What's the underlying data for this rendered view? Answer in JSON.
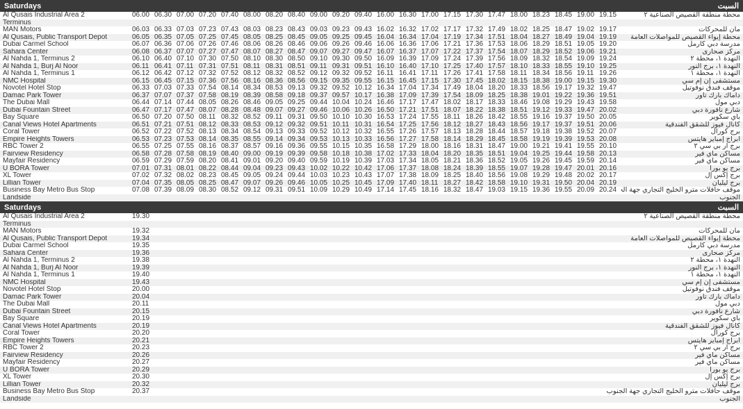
{
  "headers": {
    "saturday_en": "Saturdays",
    "saturday_ar": "السبت"
  },
  "trip_headers": [
    "06.00",
    "06.30",
    "07.00",
    "07.20",
    "07.40",
    "08.00",
    "08.20",
    "08.40",
    "09.00",
    "09.20",
    "09.40",
    "16.00",
    "16.30",
    "17.00",
    "17.15",
    "17.30",
    "17.47",
    "18.00",
    "18.23",
    "18.45",
    "19.00",
    "19.15"
  ],
  "stops": [
    {
      "en": "Al Qusais Industrial Area 2 Terminus",
      "ar": "محطة منطقة القصيص الصناعية ٢",
      "times": [
        "06.00",
        "06.30",
        "07.00",
        "07.20",
        "07.40",
        "08.00",
        "08.20",
        "08.40",
        "09.00",
        "09.20",
        "09.40",
        "16.00",
        "16.30",
        "17.00",
        "17.15",
        "17.30",
        "17.47",
        "18.00",
        "18.23",
        "18.45",
        "19.00",
        "19.15"
      ]
    },
    {
      "en": "MAN Motors",
      "ar": "مان للمحركات",
      "times": [
        "06.03",
        "06.33",
        "07.03",
        "07.23",
        "07.43",
        "08.03",
        "08.23",
        "08.43",
        "09.03",
        "09.23",
        "09.43",
        "16.02",
        "16.32",
        "17.02",
        "17.17",
        "17.32",
        "17.49",
        "18.02",
        "18.25",
        "18.47",
        "19.02",
        "19.17"
      ]
    },
    {
      "en": "Al Qusais, Public Transport Depot",
      "ar": "محطة إيواء القصيص للمواصلات العامة",
      "times": [
        "06.05",
        "06.35",
        "07.05",
        "07.25",
        "07.45",
        "08.05",
        "08.25",
        "08.45",
        "09.05",
        "09.25",
        "09.45",
        "16.04",
        "16.34",
        "17.04",
        "17.19",
        "17.34",
        "17.51",
        "18.04",
        "18.27",
        "18.49",
        "19.04",
        "19.19"
      ]
    },
    {
      "en": "Dubai Carmel School",
      "ar": "مدرسة دبي كارمل",
      "times": [
        "06.07",
        "06.36",
        "07.06",
        "07.26",
        "07.46",
        "08.06",
        "08.26",
        "08.46",
        "09.06",
        "09.26",
        "09.46",
        "16.06",
        "16.36",
        "17.06",
        "17.21",
        "17.36",
        "17.53",
        "18.06",
        "18.29",
        "18.51",
        "19.05",
        "19.20"
      ]
    },
    {
      "en": "Sahara Center",
      "ar": "مركز صحارى",
      "times": [
        "06.08",
        "06.37",
        "07.07",
        "07.27",
        "07.47",
        "08.07",
        "08.27",
        "08.47",
        "09.07",
        "09.27",
        "09.47",
        "16.07",
        "16.37",
        "17.07",
        "17.22",
        "17.37",
        "17.54",
        "18.07",
        "18.29",
        "18.52",
        "19.06",
        "19.21"
      ]
    },
    {
      "en": "Al Nahda 1, Terminus 2",
      "ar": "النهدة ١، محطة ٢",
      "times": [
        "06.10",
        "06.40",
        "07.10",
        "07.30",
        "07.50",
        "08.10",
        "08.30",
        "08.50",
        "09.10",
        "09.30",
        "09.50",
        "16.09",
        "16.39",
        "17.09",
        "17.24",
        "17.39",
        "17.56",
        "18.09",
        "18.32",
        "18.54",
        "19.09",
        "19.24"
      ]
    },
    {
      "en": "Al Nahda 1, Burj Al Noor",
      "ar": "النهدة ١، برج النور",
      "times": [
        "06.11",
        "06.41",
        "07.11",
        "07.31",
        "07.51",
        "08.11",
        "08.31",
        "08.51",
        "09.11",
        "09.31",
        "09.51",
        "16.10",
        "16.40",
        "17.10",
        "17.25",
        "17.40",
        "17.57",
        "18.10",
        "18.33",
        "18.55",
        "19.10",
        "19.25"
      ]
    },
    {
      "en": "Al Nahda 1, Terminus 1",
      "ar": "النهدة ١، محطة ١",
      "times": [
        "06.12",
        "06.42",
        "07.12",
        "07.32",
        "07.52",
        "08.12",
        "08.32",
        "08.52",
        "09.12",
        "09.32",
        "09.52",
        "16.11",
        "16.41",
        "17.11",
        "17.26",
        "17.41",
        "17.58",
        "18.11",
        "18.34",
        "18.56",
        "19.11",
        "19.26"
      ]
    },
    {
      "en": "NMC Hospital",
      "ar": "مستشفى إن إم سي",
      "times": [
        "06.15",
        "06.45",
        "07.15",
        "07.36",
        "07.56",
        "08.16",
        "08.36",
        "08.56",
        "09.15",
        "09.35",
        "09.55",
        "16.15",
        "16.45",
        "17.15",
        "17.30",
        "17.45",
        "18.02",
        "18.15",
        "18.38",
        "19.00",
        "19.15",
        "19.30"
      ]
    },
    {
      "en": "Novotel Hotel Stop",
      "ar": "موقف فندق نوفوتيل",
      "times": [
        "06.33",
        "07.03",
        "07.33",
        "07.54",
        "08.14",
        "08.34",
        "08.53",
        "09.13",
        "09.32",
        "09.52",
        "10.12",
        "16.34",
        "17.04",
        "17.34",
        "17.49",
        "18.04",
        "18.20",
        "18.33",
        "18.56",
        "19.17",
        "19.32",
        "19.47"
      ]
    },
    {
      "en": "Damac Park Tower",
      "ar": "داماك بارك تاور",
      "times": [
        "06.37",
        "07.07",
        "07.37",
        "07.58",
        "08.19",
        "08.39",
        "08.58",
        "09.18",
        "09.37",
        "09.57",
        "10.17",
        "16.38",
        "17.09",
        "17.39",
        "17.54",
        "18.09",
        "18.25",
        "18.38",
        "19.01",
        "19.22",
        "19.36",
        "19.51"
      ]
    },
    {
      "en": "The Dubai Mall",
      "ar": "دبي مول",
      "times": [
        "06.44",
        "07.14",
        "07.44",
        "08.05",
        "08.26",
        "08.46",
        "09.05",
        "09.25",
        "09.44",
        "10.04",
        "10.24",
        "16.46",
        "17.17",
        "17.47",
        "18.02",
        "18.17",
        "18.33",
        "18.46",
        "19.08",
        "19.29",
        "19.43",
        "19.58"
      ]
    },
    {
      "en": "Dubai Fountain Street",
      "ar": "شارع نافورة دبي",
      "times": [
        "06.47",
        "07.17",
        "07.47",
        "08.07",
        "08.28",
        "08.48",
        "09.07",
        "09.27",
        "09.46",
        "10.06",
        "10.26",
        "16.50",
        "17.21",
        "17.51",
        "18.07",
        "18.22",
        "18.38",
        "18.51",
        "19.12",
        "19.33",
        "19.47",
        "20.02"
      ]
    },
    {
      "en": "Bay Square",
      "ar": "باي سكوير",
      "times": [
        "06.50",
        "07.20",
        "07.50",
        "08.11",
        "08.32",
        "08.52",
        "09.11",
        "09.31",
        "09.50",
        "10.10",
        "10.30",
        "16.53",
        "17.24",
        "17.55",
        "18.11",
        "18.26",
        "18.42",
        "18.55",
        "19.16",
        "19.37",
        "19.50",
        "20.05"
      ]
    },
    {
      "en": "Canal Views Hotel Apartments",
      "ar": "كانال فيوز للشقق الفندقية",
      "times": [
        "06.51",
        "07.21",
        "07.51",
        "08.12",
        "08.33",
        "08.53",
        "09.12",
        "09.32",
        "09.51",
        "10.11",
        "10.31",
        "16.54",
        "17.25",
        "17.56",
        "18.12",
        "18.27",
        "18.43",
        "18.56",
        "19.17",
        "19.37",
        "19.51",
        "20.06"
      ]
    },
    {
      "en": "Coral Tower",
      "ar": "برج كورال",
      "times": [
        "06.52",
        "07.22",
        "07.52",
        "08.13",
        "08.34",
        "08.54",
        "09.13",
        "09.33",
        "09.52",
        "10.12",
        "10.32",
        "16.55",
        "17.26",
        "17.57",
        "18.13",
        "18.28",
        "18.44",
        "18.57",
        "19.18",
        "19.38",
        "19.52",
        "20.07"
      ]
    },
    {
      "en": "Empire Heights Towers",
      "ar": "أبراج إمباير هايتس",
      "times": [
        "06.53",
        "07.23",
        "07.53",
        "08.14",
        "08.35",
        "08.55",
        "09.14",
        "09.34",
        "09.53",
        "10.13",
        "10.33",
        "16.56",
        "17.27",
        "17.58",
        "18.14",
        "18.29",
        "18.45",
        "18.58",
        "19.19",
        "19.39",
        "19.53",
        "20.08"
      ]
    },
    {
      "en": "RBC Tower 2",
      "ar": "برج آر بي سي ٢",
      "times": [
        "06.55",
        "07.25",
        "07.55",
        "08.16",
        "08.37",
        "08.57",
        "09.16",
        "09.36",
        "09.55",
        "10.15",
        "10.35",
        "16.58",
        "17.29",
        "18.00",
        "18.16",
        "18.31",
        "18.47",
        "19.00",
        "19.21",
        "19.41",
        "19.55",
        "20.10"
      ]
    },
    {
      "en": "Fairview Residency",
      "ar": "مساكن ماي فير",
      "times": [
        "06.58",
        "07.28",
        "07.58",
        "08.19",
        "08.40",
        "09.00",
        "09.19",
        "09.39",
        "09.58",
        "10.18",
        "10.38",
        "17.02",
        "17.33",
        "18.04",
        "18.20",
        "18.35",
        "18.51",
        "19.04",
        "19.25",
        "19.44",
        "19.58",
        "20.13"
      ]
    },
    {
      "en": "Mayfair Residency",
      "ar": "مساكن ماي فير",
      "times": [
        "06.59",
        "07.29",
        "07.59",
        "08.20",
        "08.41",
        "09.01",
        "09.20",
        "09.40",
        "09.59",
        "10.19",
        "10.39",
        "17.03",
        "17.34",
        "18.05",
        "18.21",
        "18.36",
        "18.52",
        "19.05",
        "19.26",
        "19.45",
        "19.59",
        "20.14"
      ]
    },
    {
      "en": "U BORA Tower",
      "ar": "برج يو بورا",
      "times": [
        "07.01",
        "07.31",
        "08.01",
        "08.22",
        "08.44",
        "09.04",
        "09.23",
        "09.43",
        "10.02",
        "10.22",
        "10.42",
        "17.06",
        "17.37",
        "18.08",
        "18.24",
        "18.39",
        "18.55",
        "19.07",
        "19.28",
        "19.47",
        "20.01",
        "20.16"
      ]
    },
    {
      "en": "XL Tower",
      "ar": "برج إكس إل",
      "times": [
        "07.02",
        "07.32",
        "08.02",
        "08.23",
        "08.45",
        "09.05",
        "09.24",
        "09.44",
        "10.03",
        "10.23",
        "10.43",
        "17.07",
        "17.38",
        "18.09",
        "18.25",
        "18.40",
        "18.56",
        "19.08",
        "19.29",
        "19.48",
        "20.02",
        "20.17"
      ]
    },
    {
      "en": "Lillian Tower",
      "ar": "برج ليليان",
      "times": [
        "07.04",
        "07.35",
        "08.05",
        "08.25",
        "08.47",
        "09.07",
        "09.26",
        "09.46",
        "10.05",
        "10.25",
        "10.45",
        "17.09",
        "17.40",
        "18.11",
        "18.27",
        "18.42",
        "18.58",
        "19.10",
        "19.31",
        "19.50",
        "20.04",
        "20.19"
      ]
    },
    {
      "en": "Business Bay Metro Bus Stop Landside",
      "ar": "موقف حافلات مترو الخليج التجاري جهة الجنوب",
      "times": [
        "07.08",
        "07.39",
        "08.09",
        "08.30",
        "08.52",
        "09.12",
        "09.31",
        "09.51",
        "10.09",
        "10.29",
        "10.49",
        "17.14",
        "17.45",
        "18.16",
        "18.32",
        "18.47",
        "19.03",
        "19.15",
        "19.36",
        "19.55",
        "20.09",
        "20.24"
      ]
    }
  ],
  "table2_stops": [
    {
      "en": "Al Qusais Industrial Area 2 Terminus",
      "ar": "محطة منطقة القصيص الصناعية ٢",
      "time": "19.30"
    },
    {
      "en": "MAN Motors",
      "ar": "مان للمحركات",
      "time": "19.32"
    },
    {
      "en": "Al Qusais, Public Transport Depot",
      "ar": "محطة إيواء القصيص للمواصلات العامة",
      "time": "19.34"
    },
    {
      "en": "Dubai Carmel School",
      "ar": "مدرسة دبي كارمل",
      "time": "19.35"
    },
    {
      "en": "Sahara Center",
      "ar": "مركز صحارى",
      "time": "19.36"
    },
    {
      "en": "Al Nahda 1, Terminus 2",
      "ar": "النهدة ١، محطة ٢",
      "time": "19.38"
    },
    {
      "en": "Al Nahda 1, Burj Al Noor",
      "ar": "النهدة ١، برج النور",
      "time": "19.39"
    },
    {
      "en": "Al Nahda 1, Terminus 1",
      "ar": "النهدة ١، محطة ١",
      "time": "19.40"
    },
    {
      "en": "NMC Hospital",
      "ar": "مستشفى إن إم سي",
      "time": "19.43"
    },
    {
      "en": "Novotel Hotel Stop",
      "ar": "موقف فندق نوفوتيل",
      "time": "20.00"
    },
    {
      "en": "Damac Park Tower",
      "ar": "داماك بارك تاور",
      "time": "20.04"
    },
    {
      "en": "The Dubai Mall",
      "ar": "دبي مول",
      "time": "20.11"
    },
    {
      "en": "Dubai Fountain Street",
      "ar": "شارع نافورة دبي",
      "time": "20.15"
    },
    {
      "en": "Bay Square",
      "ar": "باي سكوير",
      "time": "20.19"
    },
    {
      "en": "Canal Views Hotel Apartments",
      "ar": "كانال فيوز للشقق الفندقية",
      "time": "20.19"
    },
    {
      "en": "Coral Tower",
      "ar": "برج كورال",
      "time": "20.20"
    },
    {
      "en": "Empire Heights Towers",
      "ar": "أبراج إمباير هايتس",
      "time": "20.21"
    },
    {
      "en": "RBC Tower 2",
      "ar": "برج آر بي سي ٢",
      "time": "20.23"
    },
    {
      "en": "Fairview Residency",
      "ar": "مساكن ماي فير",
      "time": "20.26"
    },
    {
      "en": "Mayfair Residency",
      "ar": "مساكن ماي فير",
      "time": "20.27"
    },
    {
      "en": "U BORA Tower",
      "ar": "برج يو بورا",
      "time": "20.29"
    },
    {
      "en": "XL Tower",
      "ar": "برج إكس إل",
      "time": "20.30"
    },
    {
      "en": "Lillian Tower",
      "ar": "برج ليليان",
      "time": "20.32"
    },
    {
      "en": "Business Bay Metro Bus Stop Landside",
      "ar": "موقف حافلات مترو الخليج التجاري جهة الجنوب",
      "time": "20.37"
    }
  ]
}
